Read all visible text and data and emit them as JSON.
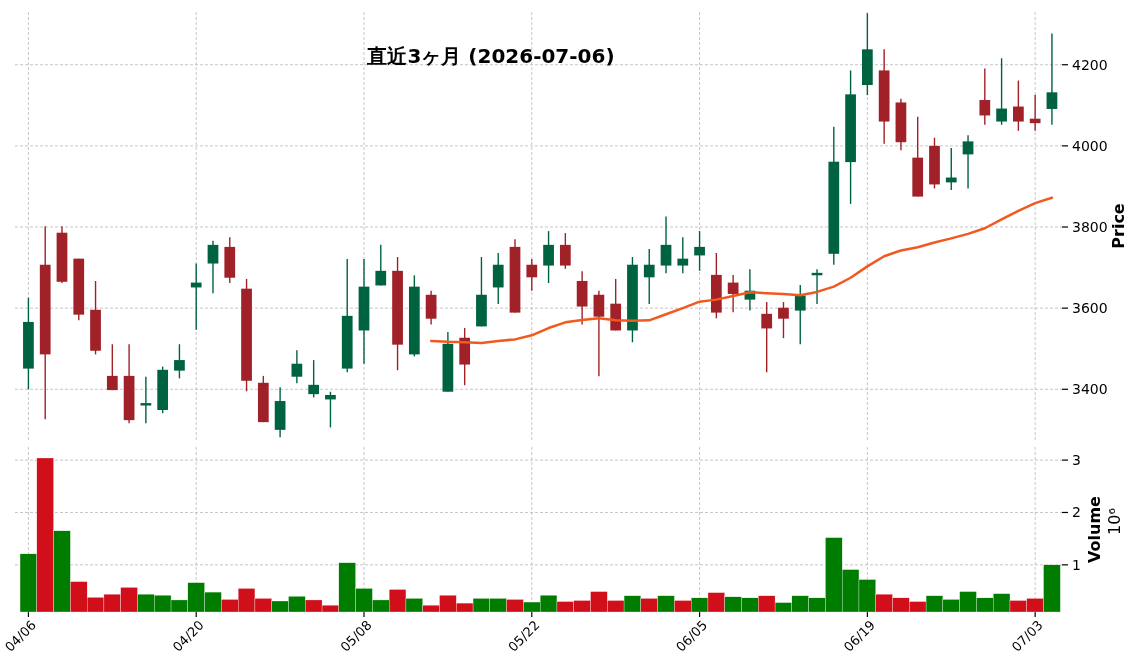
{
  "chart_data": [
    {
      "type": "candlestick",
      "title": "直近3ヶ月  (2026-07-06)",
      "ylabel": "Price",
      "categories": [
        null,
        null,
        null,
        null,
        null,
        null,
        null,
        null,
        null,
        null,
        null,
        null,
        null,
        null,
        null,
        null,
        null,
        null,
        null,
        null,
        null,
        null,
        null,
        null,
        null,
        null,
        null,
        null,
        null,
        null,
        null,
        null,
        null,
        null,
        null,
        null,
        null,
        null,
        null,
        null,
        null,
        null,
        null,
        null,
        null,
        null,
        null,
        null,
        null,
        null,
        null,
        null,
        null,
        null,
        null,
        null,
        null,
        null,
        null,
        null,
        null,
        null
      ],
      "ohlc": [
        [
          3451,
          3626,
          3400,
          3566
        ],
        [
          3707,
          3802,
          3326,
          3486
        ],
        [
          3786,
          3802,
          3662,
          3665
        ],
        [
          3722,
          3722,
          3570,
          3584
        ],
        [
          3596,
          3667,
          3486,
          3495
        ],
        [
          3433,
          3511,
          3398,
          3398
        ],
        [
          3433,
          3511,
          3316,
          3324
        ],
        [
          3360,
          3431,
          3316,
          3366
        ],
        [
          3349,
          3456,
          3341,
          3448
        ],
        [
          3446,
          3511,
          3427,
          3472
        ],
        [
          3651,
          3710,
          3547,
          3663
        ],
        [
          3710,
          3766,
          3637,
          3756
        ],
        [
          3751,
          3775,
          3662,
          3675
        ],
        [
          3648,
          3672,
          3395,
          3421
        ],
        [
          3416,
          3433,
          3319,
          3319
        ],
        [
          3300,
          3405,
          3282,
          3371
        ],
        [
          3431,
          3496,
          3415,
          3463
        ],
        [
          3388,
          3472,
          3380,
          3411
        ],
        [
          3375,
          3394,
          3306,
          3386
        ],
        [
          3451,
          3721,
          3442,
          3581
        ],
        [
          3545,
          3721,
          3463,
          3653
        ],
        [
          3656,
          3756,
          3656,
          3692
        ],
        [
          3692,
          3726,
          3447,
          3510
        ],
        [
          3486,
          3681,
          3481,
          3653
        ],
        [
          3633,
          3643,
          3560,
          3574
        ],
        [
          3394,
          3541,
          3394,
          3512
        ],
        [
          3527,
          3551,
          3410,
          3461
        ],
        [
          3555,
          3726,
          3555,
          3633
        ],
        [
          3651,
          3736,
          3610,
          3707
        ],
        [
          3751,
          3770,
          3589,
          3589
        ],
        [
          3707,
          3721,
          3643,
          3676
        ],
        [
          3705,
          3790,
          3662,
          3756
        ],
        [
          3756,
          3785,
          3697,
          3705
        ],
        [
          3667,
          3691,
          3560,
          3604
        ],
        [
          3633,
          3643,
          3432,
          3579
        ],
        [
          3611,
          3672,
          3545,
          3545
        ],
        [
          3545,
          3726,
          3516,
          3707
        ],
        [
          3676,
          3746,
          3610,
          3707
        ],
        [
          3705,
          3826,
          3686,
          3756
        ],
        [
          3705,
          3775,
          3686,
          3722
        ],
        [
          3730,
          3790,
          3692,
          3751
        ],
        [
          3682,
          3736,
          3575,
          3589
        ],
        [
          3663,
          3682,
          3590,
          3635
        ],
        [
          3621,
          3696,
          3594,
          3643
        ],
        [
          3586,
          3615,
          3442,
          3550
        ],
        [
          3601,
          3615,
          3526,
          3574
        ],
        [
          3594,
          3657,
          3511,
          3631
        ],
        [
          3681,
          3696,
          3610,
          3687
        ],
        [
          3734,
          4047,
          3707,
          3961
        ],
        [
          3960,
          4186,
          3857,
          4127
        ],
        [
          4150,
          4327,
          4125,
          4238
        ],
        [
          4186,
          4238,
          4005,
          4060
        ],
        [
          4107,
          4116,
          3989,
          4009
        ],
        [
          3971,
          4072,
          3875,
          3875
        ],
        [
          4000,
          4020,
          3895,
          3905
        ],
        [
          3910,
          3995,
          3891,
          3922
        ],
        [
          3979,
          4026,
          3895,
          4011
        ],
        [
          4113,
          4191,
          4052,
          4075
        ],
        [
          4060,
          4216,
          4052,
          4092
        ],
        [
          4097,
          4161,
          4037,
          4060
        ],
        [
          4067,
          4126,
          4037,
          4056
        ],
        [
          4091,
          4277,
          4052,
          4132
        ]
      ],
      "colors": [
        "#006340",
        "#a02128",
        "#a02128",
        "#a02128",
        "#a02128",
        "#a02128",
        "#a02128",
        "#006340",
        "#006340",
        "#006340",
        "#006340",
        "#006340",
        "#a02128",
        "#a02128",
        "#a02128",
        "#006340",
        "#006340",
        "#006340",
        "#006340",
        "#006340",
        "#006340",
        "#006340",
        "#a02128",
        "#006340",
        "#a02128",
        "#006340",
        "#a02128",
        "#006340",
        "#006340",
        "#a02128",
        "#a02128",
        "#006340",
        "#a02128",
        "#a02128",
        "#a02128",
        "#a02128",
        "#006340",
        "#006340",
        "#006340",
        "#006340",
        "#006340",
        "#a02128",
        "#a02128",
        "#006340",
        "#a02128",
        "#a02128",
        "#006340",
        "#006340",
        "#006340",
        "#006340",
        "#006340",
        "#a02128",
        "#a02128",
        "#a02128",
        "#a02128",
        "#006340",
        "#006340",
        "#a02128",
        "#006340",
        "#a02128",
        "#a02128",
        "#006340"
      ],
      "series": [
        {
          "type": "line",
          "color": "#f05a1e",
          "values": [
            null,
            null,
            null,
            null,
            null,
            null,
            null,
            null,
            null,
            null,
            null,
            null,
            null,
            null,
            null,
            null,
            null,
            null,
            null,
            null,
            null,
            null,
            null,
            null,
            3519,
            3517,
            3516,
            3514,
            3519,
            3523,
            3533,
            3551,
            3565,
            3571,
            3575,
            3570,
            3569,
            3570,
            3585,
            3600,
            3616,
            3621,
            3630,
            3639,
            3637,
            3635,
            3632,
            3640,
            3653,
            3675,
            3703,
            3728,
            3742,
            3750,
            3762,
            3772,
            3783,
            3797,
            3819,
            3840,
            3859,
            3872
          ]
        }
      ],
      "ylim": [
        3275,
        4330
      ],
      "yticks": [
        3400,
        3600,
        3800,
        4000,
        4200
      ],
      "grid": true,
      "tick_labels": "y"
    },
    {
      "type": "bar",
      "ylabel": "Volume",
      "annotations": [
        "10⁶"
      ],
      "categories": [
        "04/06",
        null,
        null,
        null,
        null,
        null,
        null,
        null,
        null,
        null,
        "04/20",
        null,
        null,
        null,
        null,
        null,
        null,
        null,
        null,
        null,
        "05/08",
        null,
        null,
        null,
        null,
        null,
        null,
        null,
        null,
        null,
        "05/22",
        null,
        null,
        null,
        null,
        null,
        null,
        null,
        null,
        null,
        "06/05",
        null,
        null,
        null,
        null,
        null,
        null,
        null,
        null,
        null,
        "06/19",
        null,
        null,
        null,
        null,
        null,
        null,
        null,
        null,
        null,
        "07/03",
        null
      ],
      "values": [
        1.21,
        3.04,
        1.65,
        0.68,
        0.38,
        0.44,
        0.57,
        0.44,
        0.42,
        0.33,
        0.66,
        0.48,
        0.34,
        0.55,
        0.36,
        0.31,
        0.4,
        0.33,
        0.23,
        1.04,
        0.55,
        0.33,
        0.53,
        0.36,
        0.23,
        0.42,
        0.27,
        0.36,
        0.36,
        0.34,
        0.29,
        0.42,
        0.3,
        0.32,
        0.49,
        0.32,
        0.41,
        0.36,
        0.41,
        0.32,
        0.37,
        0.47,
        0.39,
        0.37,
        0.41,
        0.28,
        0.41,
        0.37,
        1.52,
        0.91,
        0.72,
        0.44,
        0.37,
        0.3,
        0.41,
        0.34,
        0.49,
        0.37,
        0.45,
        0.32,
        0.36,
        1.0
      ],
      "colors": [
        "#007d00",
        "#d10f1a",
        "#007d00",
        "#d10f1a",
        "#d10f1a",
        "#d10f1a",
        "#d10f1a",
        "#007d00",
        "#007d00",
        "#007d00",
        "#007d00",
        "#007d00",
        "#d10f1a",
        "#d10f1a",
        "#d10f1a",
        "#007d00",
        "#007d00",
        "#d10f1a",
        "#d10f1a",
        "#007d00",
        "#007d00",
        "#007d00",
        "#d10f1a",
        "#007d00",
        "#d10f1a",
        "#d10f1a",
        "#d10f1a",
        "#007d00",
        "#007d00",
        "#d10f1a",
        "#007d00",
        "#007d00",
        "#d10f1a",
        "#d10f1a",
        "#d10f1a",
        "#d10f1a",
        "#007d00",
        "#d10f1a",
        "#007d00",
        "#d10f1a",
        "#007d00",
        "#d10f1a",
        "#007d00",
        "#007d00",
        "#d10f1a",
        "#007d00",
        "#007d00",
        "#007d00",
        "#007d00",
        "#007d00",
        "#007d00",
        "#d10f1a",
        "#d10f1a",
        "#d10f1a",
        "#007d00",
        "#007d00",
        "#007d00",
        "#007d00",
        "#007d00",
        "#d10f1a",
        "#d10f1a",
        "#007d00"
      ],
      "ylim": [
        0.1,
        3.25
      ],
      "yticks": [
        1,
        2,
        3
      ],
      "grid": true
    }
  ]
}
